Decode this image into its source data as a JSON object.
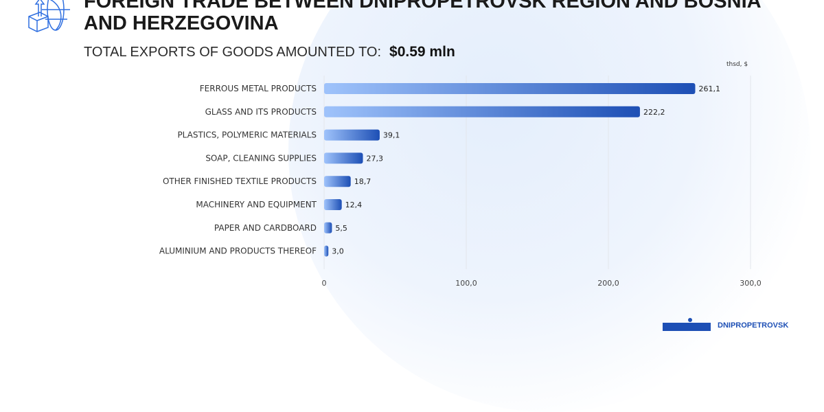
{
  "title": "FOREIGN TRADE BETWEEN DNIPROPETROVSK REGION AND BOSNIA AND HERZEGOVINA",
  "subtitle": "TOTAL EXPORTS OF GOODS AMOUNTED TO:",
  "total": "$0.59 mln",
  "brand": "DNIPROPETROVSK",
  "colors": {
    "bar_start": "#9fc3fb",
    "bar_end": "#1d4fb5"
  },
  "chart_data": {
    "type": "bar",
    "orientation": "horizontal",
    "unit": "thsd, $",
    "categories": [
      "FERROUS METAL PRODUCTS",
      "GLASS AND ITS PRODUCTS",
      "PLASTICS, POLYMERIC MATERIALS",
      "SOAP, CLEANING SUPPLIES",
      "OTHER FINISHED TEXTILE PRODUCTS",
      "MACHINERY AND EQUIPMENT",
      "PAPER AND CARDBOARD",
      "ALUMINIUM AND PRODUCTS THEREOF"
    ],
    "values": [
      261.1,
      222.2,
      39.1,
      27.3,
      18.7,
      12.4,
      5.5,
      3.0
    ],
    "value_labels": [
      "261,1",
      "222,2",
      "39,1",
      "27,3",
      "18,7",
      "12,4",
      "5,5",
      "3,0"
    ],
    "xlim": [
      0,
      300
    ],
    "xticks": [
      0,
      100,
      200,
      300
    ],
    "xtick_labels": [
      "0",
      "100,0",
      "200,0",
      "300,0"
    ],
    "grid": true
  }
}
